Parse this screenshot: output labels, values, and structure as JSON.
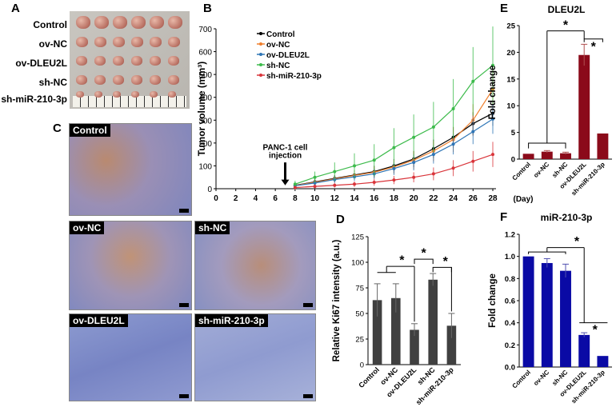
{
  "panels": {
    "A": {
      "label": "A",
      "rows": [
        "Control",
        "ov-NC",
        "ov-DLEU2L",
        "sh-NC",
        "sh-miR-210-3p"
      ]
    },
    "C": {
      "label": "C",
      "images": [
        "Control",
        "ov-NC",
        "sh-NC",
        "ov-DLEU2L",
        "sh-miR-210-3p"
      ]
    },
    "B": {
      "label": "B"
    },
    "D": {
      "label": "D"
    },
    "E": {
      "label": "E"
    },
    "F": {
      "label": "F"
    }
  },
  "chart_data": [
    {
      "id": "B",
      "type": "line",
      "title": "",
      "xlabel": "(Day)",
      "ylabel": "Tumor volume (mm³)",
      "x": [
        8,
        10,
        12,
        14,
        16,
        18,
        20,
        22,
        24,
        26,
        28
      ],
      "xlim": [
        0,
        28
      ],
      "xticks": [
        "0",
        "2",
        "4",
        "6",
        "8",
        "10",
        "12",
        "14",
        "16",
        "18",
        "20",
        "22",
        "24",
        "26",
        "28"
      ],
      "ylim": [
        0,
        700
      ],
      "yticks": [
        "0",
        "100",
        "200",
        "300",
        "400",
        "500",
        "600",
        "700"
      ],
      "annotation": {
        "text_line1": "PANC-1 cell",
        "text_line2": "injection",
        "x": 7
      },
      "series": [
        {
          "name": "Control",
          "color": "#000000",
          "values": [
            15,
            30,
            45,
            60,
            75,
            100,
            130,
            175,
            225,
            285,
            330
          ],
          "errors": [
            8,
            12,
            15,
            20,
            25,
            30,
            35,
            40,
            45,
            50,
            55
          ]
        },
        {
          "name": "ov-NC",
          "color": "#f07f2c",
          "values": [
            14,
            28,
            43,
            58,
            72,
            95,
            125,
            165,
            215,
            300,
            435
          ],
          "errors": [
            8,
            12,
            15,
            20,
            25,
            30,
            40,
            45,
            55,
            70,
            95
          ]
        },
        {
          "name": "ov-DLEU2L",
          "color": "#2e75b6",
          "values": [
            13,
            25,
            40,
            52,
            65,
            88,
            115,
            150,
            195,
            250,
            305
          ],
          "errors": [
            8,
            12,
            15,
            18,
            22,
            28,
            35,
            40,
            45,
            55,
            65
          ]
        },
        {
          "name": "sh-NC",
          "color": "#3dbb4c",
          "values": [
            20,
            50,
            75,
            100,
            125,
            180,
            225,
            270,
            350,
            470,
            540
          ],
          "errors": [
            15,
            25,
            40,
            55,
            70,
            85,
            100,
            110,
            130,
            150,
            170
          ]
        },
        {
          "name": "sh-miR-210-3p",
          "color": "#d9343a",
          "values": [
            5,
            10,
            15,
            20,
            28,
            38,
            50,
            65,
            90,
            120,
            150
          ],
          "errors": [
            5,
            8,
            10,
            12,
            15,
            18,
            22,
            28,
            35,
            45,
            55
          ]
        }
      ]
    },
    {
      "id": "D",
      "type": "bar",
      "ylabel": "Relative Ki67 intensity (a.u.)",
      "categories": [
        "Control",
        "ov-NC",
        "ov-DLEU2L",
        "sh-NC",
        "sh-miR-210-3p"
      ],
      "values": [
        63,
        65,
        34,
        83,
        38
      ],
      "errors": [
        16,
        14,
        6,
        6,
        12
      ],
      "ylim": [
        0,
        125
      ],
      "yticks": [
        "0",
        "25",
        "50",
        "75",
        "100",
        "125"
      ],
      "color": "#404040",
      "significance": "*"
    },
    {
      "id": "E",
      "type": "bar",
      "title": "DLEU2L",
      "ylabel": "Fold change",
      "categories": [
        "Control",
        "ov-NC",
        "sh-NC",
        "ov-DLEU2L",
        "sh-miR-210-3p"
      ],
      "values": [
        1.0,
        1.4,
        1.1,
        19.5,
        4.8
      ],
      "errors": [
        0,
        0.2,
        0.2,
        2.0,
        0
      ],
      "ylim": [
        0,
        25
      ],
      "yticks": [
        "0",
        "5",
        "10",
        "15",
        "20",
        "25"
      ],
      "color": "#8b0a1a",
      "significance": "*"
    },
    {
      "id": "F",
      "type": "bar",
      "title": "miR-210-3p",
      "ylabel": "Fold change",
      "categories": [
        "Control",
        "ov-NC",
        "sh-NC",
        "ov-DLEU2L",
        "sh-miR-210-3p"
      ],
      "values": [
        1.0,
        0.94,
        0.87,
        0.29,
        0.1
      ],
      "errors": [
        0,
        0.04,
        0.06,
        0.02,
        0
      ],
      "ylim": [
        0,
        1.2
      ],
      "yticks": [
        "0.0",
        "0.2",
        "0.4",
        "0.6",
        "0.8",
        "1.0",
        "1.2"
      ],
      "color": "#0a0aa5",
      "significance": "*"
    }
  ]
}
